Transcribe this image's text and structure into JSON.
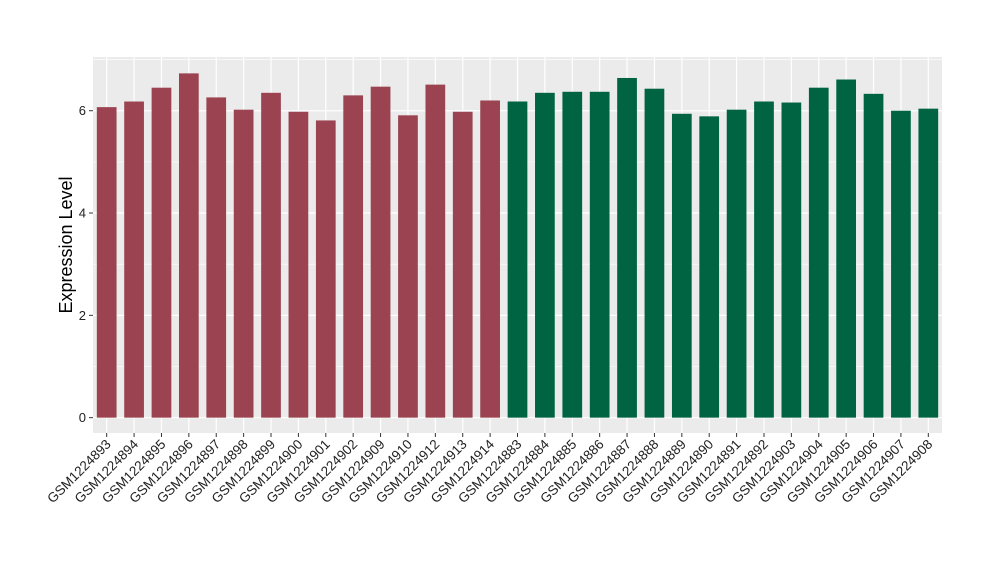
{
  "chart_data": {
    "type": "bar",
    "title": "",
    "xlabel": "",
    "ylabel": "Expression Level",
    "ylim": [
      -0.3,
      7.05
    ],
    "yticks": [
      0,
      2,
      4,
      6
    ],
    "grid": true,
    "legend": "none",
    "background_color": "#ebebeb",
    "grid_color": "#ffffff",
    "categories": [
      "GSM1224893",
      "GSM1224894",
      "GSM1224895",
      "GSM1224896",
      "GSM1224897",
      "GSM1224898",
      "GSM1224899",
      "GSM1224900",
      "GSM1224901",
      "GSM1224902",
      "GSM1224909",
      "GSM1224910",
      "GSM1224912",
      "GSM1224913",
      "GSM1224914",
      "GSM1224883",
      "GSM1224884",
      "GSM1224885",
      "GSM1224886",
      "GSM1224887",
      "GSM1224888",
      "GSM1224889",
      "GSM1224890",
      "GSM1224891",
      "GSM1224892",
      "GSM1224903",
      "GSM1224904",
      "GSM1224905",
      "GSM1224906",
      "GSM1224907",
      "GSM1224908"
    ],
    "values": [
      6.07,
      6.18,
      6.45,
      6.73,
      6.26,
      6.02,
      6.35,
      5.98,
      5.81,
      6.3,
      6.47,
      5.91,
      6.51,
      5.98,
      6.2,
      6.18,
      6.35,
      6.37,
      6.37,
      6.64,
      6.43,
      5.94,
      5.89,
      6.02,
      6.18,
      6.16,
      6.45,
      6.61,
      6.33,
      6.0,
      6.04
    ],
    "groups": [
      {
        "color": "#9b4350",
        "count": 15
      },
      {
        "color": "#006442",
        "count": 16
      }
    ]
  }
}
